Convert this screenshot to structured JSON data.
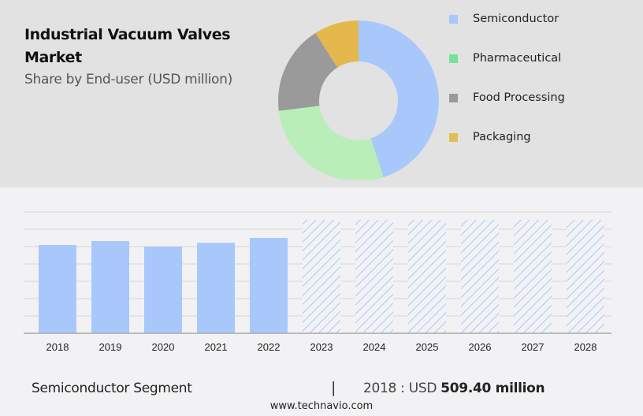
{
  "header": {
    "title": "Industrial Vacuum Valves Market",
    "subtitle": "Share by End-user (USD million)"
  },
  "legend": [
    {
      "label": "Semiconductor",
      "color": "#a8c8fc"
    },
    {
      "label": "Pharmaceutical",
      "color": "#73e39a"
    },
    {
      "label": "Food Processing",
      "color": "#9a9a9a"
    },
    {
      "label": "Packaging",
      "color": "#e0c054"
    }
  ],
  "footer": {
    "segment": "Semiconductor Segment",
    "separator": "|",
    "value_prefix": "2018 : USD",
    "value_bold": "509.40 million",
    "url": "www.technavio.com"
  },
  "chart_data": [
    {
      "type": "pie",
      "title": "Industrial Vacuum Valves Market",
      "subtitle": "Share by End-user (USD million)",
      "donut": true,
      "categories": [
        "Semiconductor",
        "Pharmaceutical",
        "Food Processing",
        "Packaging"
      ],
      "values": [
        45,
        28,
        18,
        9
      ],
      "colors": [
        "#a8c8fc",
        "#b9eeb9",
        "#9a9a9a",
        "#e5b84e"
      ],
      "legend_position": "right"
    },
    {
      "type": "bar",
      "title": "Semiconductor Segment",
      "categories": [
        "2018",
        "2019",
        "2020",
        "2021",
        "2022",
        "2023",
        "2024",
        "2025",
        "2026",
        "2027",
        "2028"
      ],
      "values": [
        509.4,
        532,
        500,
        522,
        550,
        null,
        null,
        null,
        null,
        null,
        null
      ],
      "forecast_categories": [
        "2023",
        "2024",
        "2025",
        "2026",
        "2027",
        "2028"
      ],
      "forecast_style": "hatched",
      "bar_color": "#a8c8fc",
      "xlabel": "",
      "ylabel": "",
      "ylim": [
        0,
        700
      ],
      "gridlines": [
        100,
        200,
        300,
        400,
        500,
        600,
        700
      ],
      "grid": true,
      "annotation": "2018 : USD 509.40 million"
    }
  ]
}
